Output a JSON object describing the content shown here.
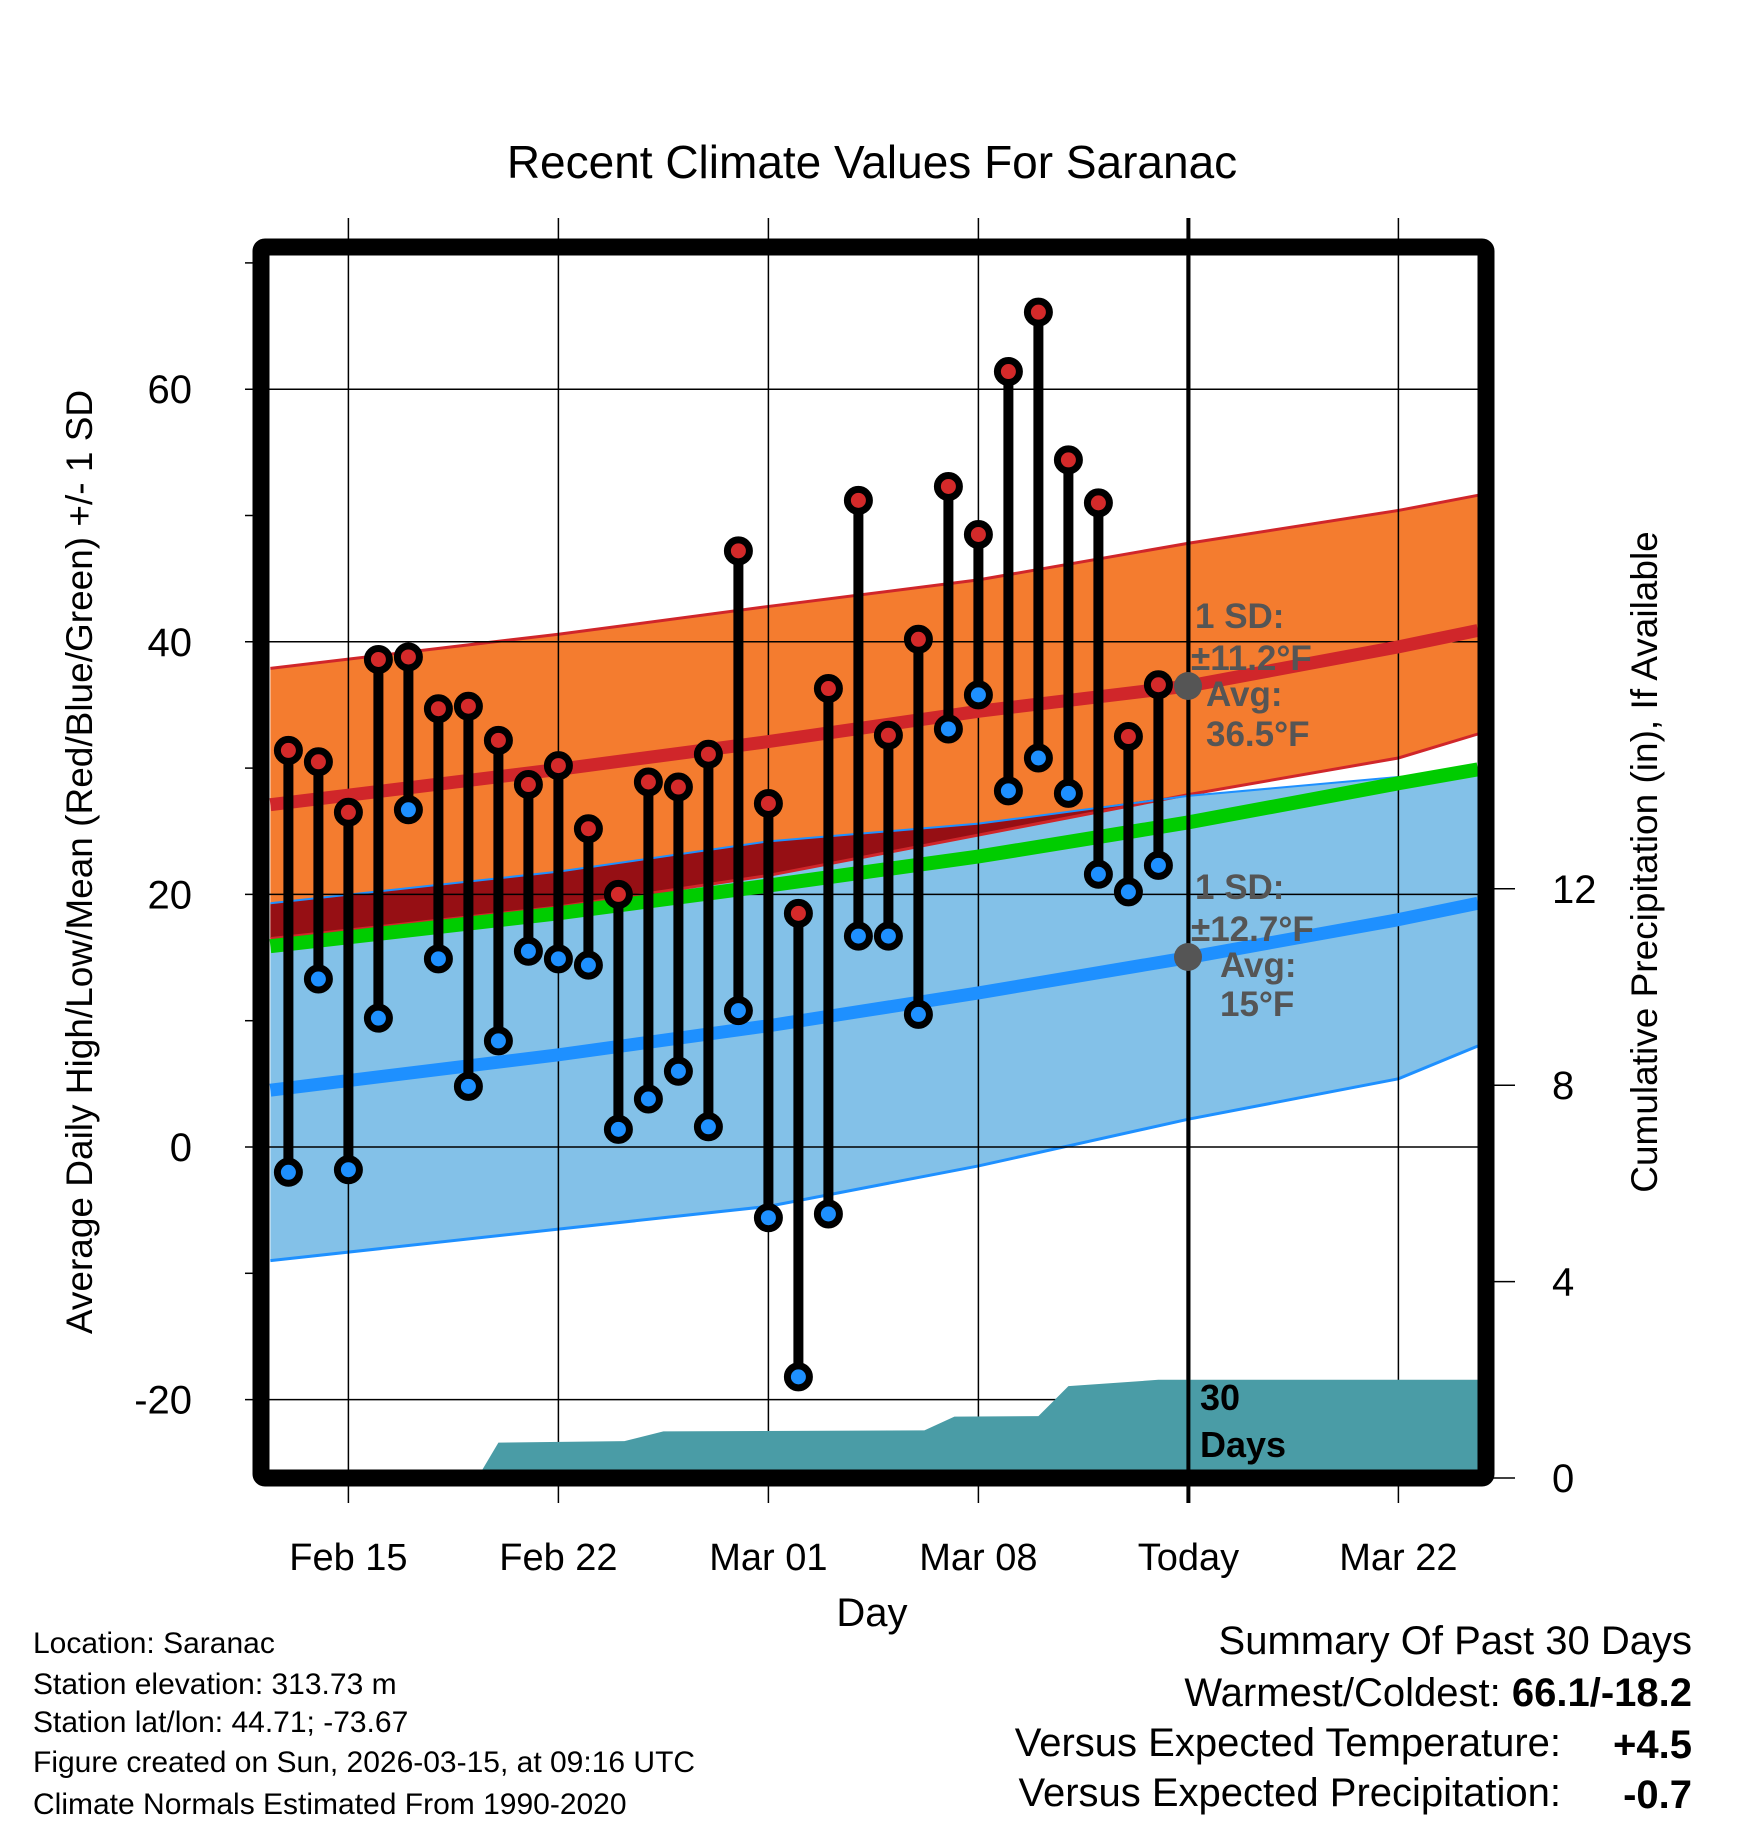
{
  "chart_data": {
    "type": "line",
    "title": "Recent Climate Values For Saranac",
    "xlabel": "Day",
    "ylabel": "Average Daily High/Low/Mean (Red/Blue/Green) +/- 1 SD",
    "ylabel_right": "Cumulative Precipitation (in), If Available",
    "ylim": [
      -25.6,
      70.5
    ],
    "ylim_right": [
      0,
      16
    ],
    "x_unit": "days since Feb 15",
    "xlim": [
      -2.6,
      37.65
    ],
    "grid": true,
    "x_ticks": [
      {
        "x": 0,
        "label": "Feb 15"
      },
      {
        "x": 7,
        "label": "Feb 22"
      },
      {
        "x": 14,
        "label": "Mar 01"
      },
      {
        "x": 21,
        "label": "Mar 08"
      },
      {
        "x": 28,
        "label": "Today"
      },
      {
        "x": 35,
        "label": "Mar 22"
      }
    ],
    "y_ticks": [
      "-20",
      "0",
      "20",
      "40",
      "60"
    ],
    "y_ticks_right": [
      "0",
      "4",
      "8",
      "12"
    ],
    "daily": {
      "x": [
        -2,
        -1,
        0,
        1,
        2,
        3,
        4,
        5,
        6,
        7,
        8,
        9,
        10,
        11,
        12,
        13,
        14,
        15,
        16,
        17,
        18,
        19,
        20,
        21,
        22,
        23,
        24,
        25,
        26,
        27
      ],
      "high": [
        31.4,
        30.5,
        26.5,
        38.6,
        38.8,
        34.7,
        34.9,
        32.2,
        28.7,
        30.2,
        25.2,
        20.0,
        28.9,
        28.5,
        31.1,
        47.2,
        27.2,
        18.5,
        36.3,
        51.2,
        32.6,
        40.2,
        52.3,
        48.5,
        61.4,
        66.1,
        54.4,
        51.0,
        32.5,
        36.6
      ],
      "low": [
        -2.0,
        13.3,
        -1.8,
        10.2,
        26.7,
        14.9,
        4.8,
        8.4,
        15.5,
        14.9,
        14.4,
        1.4,
        3.8,
        6.0,
        1.6,
        10.8,
        -5.6,
        -18.2,
        -5.3,
        16.7,
        16.7,
        10.5,
        33.1,
        35.8,
        28.2,
        30.8,
        28.0,
        21.6,
        20.2,
        22.3
      ]
    },
    "normals": {
      "x": [
        -2.6,
        7,
        14,
        21,
        28,
        35,
        37.65
      ],
      "high_plus_sd": [
        37.9,
        40.6,
        42.8,
        44.9,
        47.8,
        50.4,
        51.6
      ],
      "high_mean": [
        27.1,
        29.9,
        32.1,
        34.5,
        36.5,
        39.6,
        40.9
      ],
      "high_minus_sd": [
        16.5,
        19.0,
        21.5,
        24.7,
        27.9,
        30.8,
        32.7
      ],
      "mean": [
        15.9,
        18.5,
        20.7,
        23.0,
        25.7,
        28.8,
        29.9
      ],
      "low_plus_sd": [
        19.3,
        21.8,
        24.2,
        25.6,
        27.8,
        29.3,
        29.5
      ],
      "low_mean": [
        4.5,
        7.3,
        9.6,
        12.2,
        15.0,
        18.0,
        19.3
      ],
      "low_minus_sd": [
        -9.0,
        -6.5,
        -4.7,
        -1.5,
        2.2,
        5.4,
        8.0
      ]
    },
    "precip": {
      "x": [
        -2.6,
        4.3,
        5.0,
        9.2,
        10.5,
        19.2,
        20.2,
        23.0,
        24.0,
        27.0,
        37.65
      ],
      "y": [
        0,
        0,
        0.72,
        0.75,
        0.95,
        0.97,
        1.25,
        1.26,
        1.87,
        2.0,
        2.0
      ]
    },
    "annotations": {
      "high_sd_label": "1 SD:",
      "high_sd_value": "±11.2°F",
      "high_avg_label": "Avg:",
      "high_avg_value": "36.5°F",
      "low_sd_label": "1 SD:",
      "low_sd_value": "±12.7°F",
      "low_avg_label": "Avg:",
      "low_avg_value": "15°F",
      "precip_line1": "30",
      "precip_line2": "Days"
    }
  },
  "info": {
    "location": "Location: Saranac",
    "elevation": "Station elevation: 313.73 m",
    "latlon": "Station lat/lon: 44.71; -73.67",
    "created": "Figure created on Sun, 2026-03-15, at 09:16 UTC",
    "normals": "Climate Normals Estimated From 1990-2020"
  },
  "summary": {
    "title": "Summary Of Past 30 Days",
    "warm_cold_label": "Warmest/Coldest: ",
    "warm_cold_value": "66.1/-18.2",
    "temp_label": "Versus Expected Temperature:",
    "temp_value": "+4.5",
    "precip_label": "Versus Expected Precipitation:",
    "precip_value": "-0.7"
  },
  "colors": {
    "high_band": "#f47c2f",
    "low_band": "#83c1e8",
    "overlap": "#960f14",
    "mean": "#00cc00",
    "high_line": "#d0262a",
    "low_line": "#1e90ff",
    "precip": "#4a9ca6",
    "temp_value": "#d0262a",
    "precip_value": "#a0522d"
  }
}
